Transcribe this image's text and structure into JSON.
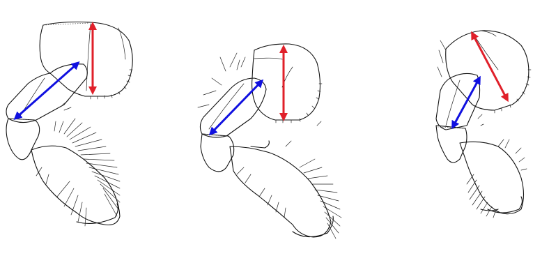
{
  "figure": {
    "panels": [
      {
        "id": "left",
        "arrows": [
          {
            "color_name": "blue",
            "measure": "length"
          },
          {
            "color_name": "red",
            "measure": "width"
          }
        ]
      },
      {
        "id": "middle",
        "arrows": [
          {
            "color_name": "blue",
            "measure": "length"
          },
          {
            "color_name": "red",
            "measure": "width"
          }
        ]
      },
      {
        "id": "right",
        "arrows": [
          {
            "color_name": "blue",
            "measure": "length"
          },
          {
            "color_name": "red",
            "measure": "width"
          }
        ]
      }
    ]
  },
  "colors": {
    "blue_arrow": "#1010e0",
    "red_arrow": "#e0202a",
    "line_ink": "#111111",
    "background": "#ffffff"
  }
}
